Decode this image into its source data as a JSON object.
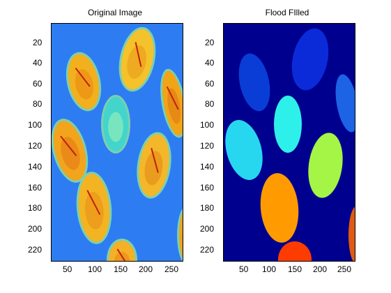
{
  "figure": {
    "panels": [
      {
        "title": "Original Image",
        "yticks": [
          "20",
          "40",
          "60",
          "80",
          "100",
          "120",
          "140",
          "160",
          "180",
          "200",
          "220"
        ],
        "xticks": [
          "50",
          "100",
          "150",
          "200",
          "250"
        ],
        "background_color": "#2e7cf2",
        "regions": [
          {
            "kind": "coin",
            "fill": "#f2b01e",
            "inner": "#e98a12"
          },
          {
            "kind": "coin",
            "fill": "#f4c22a",
            "inner": "#e9991a"
          },
          {
            "kind": "coin",
            "fill": "#f1a416",
            "inner": "#e07818"
          },
          {
            "kind": "dime",
            "fill": "#43d5cc",
            "inner": "#9ef0b5"
          },
          {
            "kind": "coin",
            "fill": "#f2a41d",
            "inner": "#e57a15"
          },
          {
            "kind": "coin",
            "fill": "#f4b72a",
            "inner": "#e28b17"
          },
          {
            "kind": "coin",
            "fill": "#f3b423",
            "inner": "#e99017"
          },
          {
            "kind": "coin",
            "fill": "#f1a11a",
            "inner": "#e67b18"
          },
          {
            "kind": "coin",
            "fill": "#f4b026",
            "inner": "#e88914"
          }
        ]
      },
      {
        "title": "Flood FIlled",
        "yticks": [
          "20",
          "40",
          "60",
          "80",
          "100",
          "120",
          "140",
          "160",
          "180",
          "200",
          "220"
        ],
        "xticks": [
          "50",
          "100",
          "150",
          "200",
          "250"
        ],
        "background_color": "#00008f",
        "regions": [
          {
            "label": "region-1",
            "fill": "#0a3dd6"
          },
          {
            "label": "region-2",
            "fill": "#0b2bd8"
          },
          {
            "label": "region-3",
            "fill": "#1c63e6"
          },
          {
            "label": "region-4",
            "fill": "#27d7f0"
          },
          {
            "label": "region-5",
            "fill": "#2ef0ea"
          },
          {
            "label": "region-6",
            "fill": "#a4f546"
          },
          {
            "label": "region-7",
            "fill": "#ff9b00"
          },
          {
            "label": "region-8",
            "fill": "#ff3c00"
          },
          {
            "label": "region-9",
            "fill": "#e05a10"
          }
        ]
      }
    ]
  }
}
